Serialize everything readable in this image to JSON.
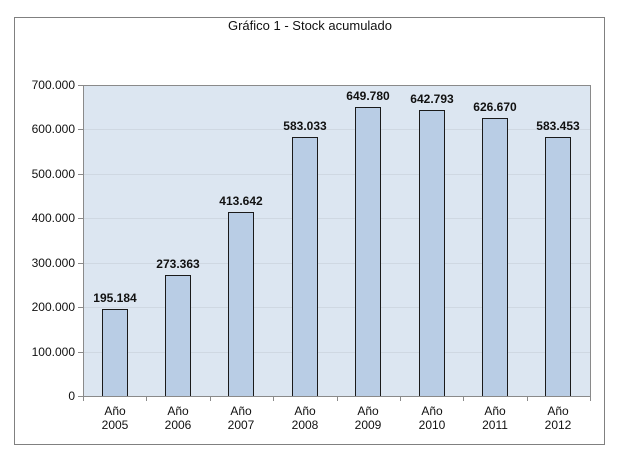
{
  "chart_data": {
    "type": "bar",
    "title": "Gráfico 1 - Stock acumulado",
    "xlabel": "",
    "ylabel": "",
    "categories": [
      "Año 2005",
      "Año 2006",
      "Año 2007",
      "Año 2008",
      "Año 2009",
      "Año 2010",
      "Año 2011",
      "Año 2012"
    ],
    "category_lines": [
      [
        "Año",
        "2005"
      ],
      [
        "Año",
        "2006"
      ],
      [
        "Año",
        "2007"
      ],
      [
        "Año",
        "2008"
      ],
      [
        "Año",
        "2009"
      ],
      [
        "Año",
        "2010"
      ],
      [
        "Año",
        "2011"
      ],
      [
        "Año",
        "2012"
      ]
    ],
    "values": [
      195184,
      273363,
      413642,
      583033,
      649780,
      642793,
      626670,
      583453
    ],
    "value_labels": [
      "195.184",
      "273.363",
      "413.642",
      "583.033",
      "649.780",
      "642.793",
      "626.670",
      "583.453"
    ],
    "ylim": [
      0,
      700000
    ],
    "yticks": [
      0,
      100000,
      200000,
      300000,
      400000,
      500000,
      600000,
      700000
    ],
    "ytick_labels": [
      "0",
      "100.000",
      "200.000",
      "300.000",
      "400.000",
      "500.000",
      "600.000",
      "700.000"
    ],
    "grid": true,
    "legend": null,
    "colors": {
      "bar_fill": "#b9cde5",
      "bar_border": "#1a1a1a",
      "plot_bg": "#dce6f1"
    }
  }
}
